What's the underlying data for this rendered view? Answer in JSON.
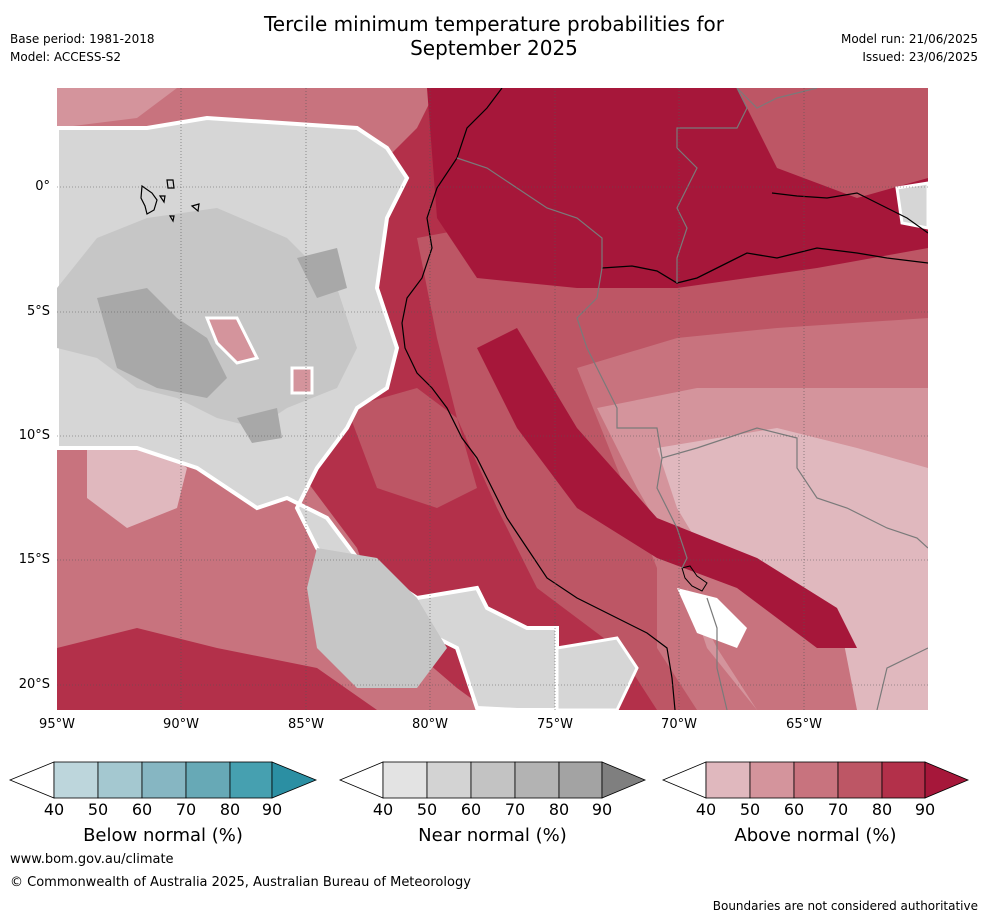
{
  "header": {
    "title_line1": "Tercile minimum temperature probabilities for",
    "title_line2": "September 2025",
    "base_period": "Base period: 1981-2018",
    "model": "Model: ACCESS-S2",
    "model_run": "Model run: 21/06/2025",
    "issued": "Issued: 23/06/2025"
  },
  "axes": {
    "lat_labels": [
      "0°",
      "5°S",
      "10°S",
      "15°S",
      "20°S"
    ],
    "lon_labels": [
      "95°W",
      "90°W",
      "85°W",
      "80°W",
      "75°W",
      "70°W",
      "65°W"
    ],
    "lat_range": [
      -21,
      4
    ],
    "lon_range": [
      -95,
      -60
    ]
  },
  "colorbars": [
    {
      "name": "Below normal (%)",
      "ticks": [
        "40",
        "50",
        "60",
        "70",
        "80",
        "90"
      ],
      "colors": [
        "#ffffff",
        "#bdd6dc",
        "#a4c8d0",
        "#86b6c2",
        "#67a9b6",
        "#46a0b0",
        "#2b8fa3"
      ]
    },
    {
      "name": "Near normal (%)",
      "ticks": [
        "40",
        "50",
        "60",
        "70",
        "80",
        "90"
      ],
      "colors": [
        "#ffffff",
        "#e3e3e3",
        "#d3d3d3",
        "#c3c3c3",
        "#b3b3b3",
        "#a3a3a3",
        "#7f7f7f"
      ]
    },
    {
      "name": "Above normal (%)",
      "ticks": [
        "40",
        "50",
        "60",
        "70",
        "80",
        "90"
      ],
      "colors": [
        "#ffffff",
        "#e0b8be",
        "#d4949c",
        "#c8737e",
        "#bd5665",
        "#b3304a",
        "#a6173a"
      ]
    }
  ],
  "footer": {
    "url": "www.bom.gov.au/climate",
    "copyright": "© Commonwealth of Australia 2025, Australian Bureau of Meteorology",
    "disclaimer": "Boundaries are not considered authoritative"
  },
  "map_colors": {
    "above_50": "#e0b8be",
    "above_60": "#d4949c",
    "above_70": "#c8737e",
    "above_80": "#bd5665",
    "above_90": "#b3304a",
    "above_max": "#a6173a",
    "near_40": "#e3e3e3",
    "near_50": "#d6d6d6",
    "near_60": "#c6c6c6",
    "near_70": "#a8a8a8"
  }
}
